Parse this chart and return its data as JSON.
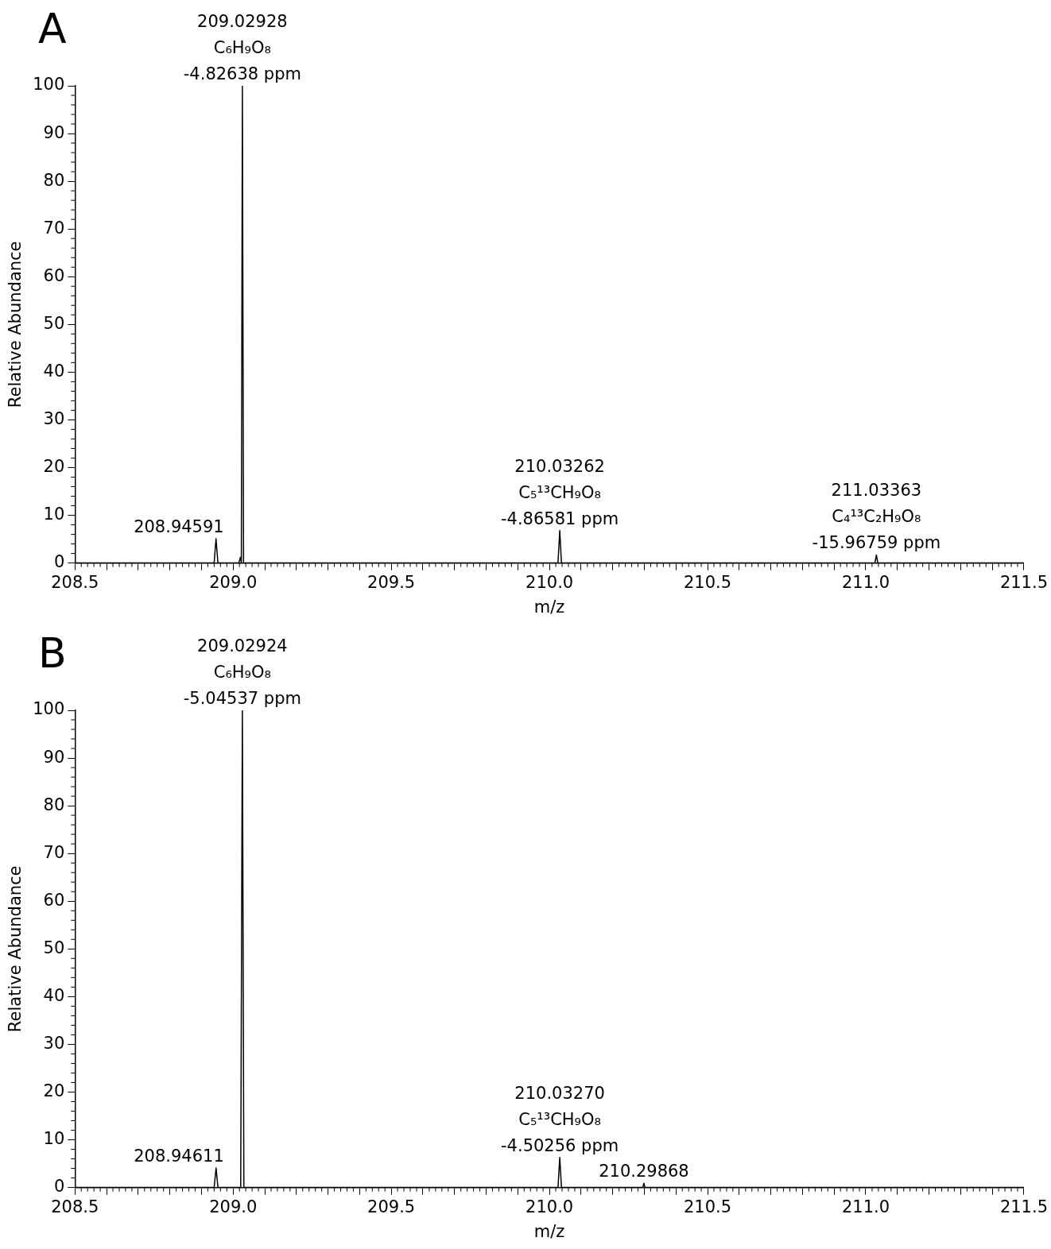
{
  "chart_data": [
    {
      "type": "line",
      "title": "A",
      "xlabel": "m/z",
      "ylabel": "Relative Abundance",
      "series": [
        {
          "color": "#000000",
          "x": [
            208.5,
            208.94,
            208.94591,
            208.952,
            209.018,
            209.023,
            209.026,
            209.02928,
            209.033,
            210.027,
            210.03262,
            210.038,
            211.029,
            211.03363,
            211.038,
            211.5
          ],
          "values": [
            0,
            0,
            5.1,
            0,
            0,
            1.2,
            0,
            100,
            0,
            0,
            6.8,
            0,
            0,
            1.7,
            0,
            0
          ]
        }
      ],
      "annotations": [
        {
          "text": "208.94591",
          "x": 208.94591,
          "y": 5.1
        },
        {
          "text": "209.02928\nC₆H₉O₈\n-4.82638 ppm",
          "x": 209.02928,
          "y": 100
        },
        {
          "text": "210.03262\nC₅¹³CH₉O₈\n-4.86581 ppm",
          "x": 210.03262,
          "y": 6.8
        },
        {
          "text": "211.03363\nC₄¹³C₂H₉O₈\n-15.96759 ppm",
          "x": 211.03363,
          "y": 1.7
        }
      ],
      "xlim": [
        208.5,
        211.5
      ],
      "ylim": [
        0,
        100
      ],
      "xticks": [
        208.5,
        {
          "value": 208.6,
          "label": null
        },
        {
          "value": 208.7,
          "label": null
        },
        {
          "value": 208.8,
          "label": null
        },
        {
          "value": 208.9,
          "label": null
        },
        {
          "value": 209,
          "label": "209.0"
        },
        {
          "value": 209.1,
          "label": null
        },
        {
          "value": 209.2,
          "label": null
        },
        {
          "value": 209.3,
          "label": null
        },
        {
          "value": 209.4,
          "label": null
        },
        209.5,
        {
          "value": 209.6,
          "label": null
        },
        {
          "value": 209.7,
          "label": null
        },
        {
          "value": 209.8,
          "label": null
        },
        {
          "value": 209.9,
          "label": null
        },
        {
          "value": 210,
          "label": "210.0"
        },
        {
          "value": 210.1,
          "label": null
        },
        {
          "value": 210.2,
          "label": null
        },
        {
          "value": 210.3,
          "label": null
        },
        {
          "value": 210.4,
          "label": null
        },
        210.5,
        {
          "value": 210.6,
          "label": null
        },
        {
          "value": 210.7,
          "label": null
        },
        {
          "value": 210.8,
          "label": null
        },
        {
          "value": 210.9,
          "label": null
        },
        {
          "value": 211,
          "label": "211.0"
        },
        {
          "value": 211.1,
          "label": null
        },
        {
          "value": 211.2,
          "label": null
        },
        {
          "value": 211.3,
          "label": null
        },
        {
          "value": 211.4,
          "label": null
        },
        211.5
      ],
      "yticks": [
        0,
        10,
        20,
        30,
        40,
        50,
        60,
        70,
        80,
        90,
        100
      ],
      "grid": false,
      "legend": false
    },
    {
      "type": "line",
      "title": "B",
      "xlabel": "m/z",
      "ylabel": "Relative Abundance",
      "series": [
        {
          "color": "#000000",
          "x": [
            208.5,
            208.94,
            208.94611,
            208.952,
            209.024,
            209.02924,
            209.034,
            210.027,
            210.0327,
            210.038,
            210.295,
            210.29868,
            210.302,
            211.5
          ],
          "values": [
            0,
            0,
            4.1,
            0,
            0,
            100,
            0,
            0,
            6.3,
            0,
            0,
            0.9,
            0,
            0
          ]
        }
      ],
      "annotations": [
        {
          "text": "208.94611",
          "x": 208.94611,
          "y": 4.1
        },
        {
          "text": "209.02924\nC₆H₉O₈\n-5.04537 ppm",
          "x": 209.02924,
          "y": 100
        },
        {
          "text": "210.03270\nC₅¹³CH₉O₈\n-4.50256 ppm",
          "x": 210.0327,
          "y": 6.3
        },
        {
          "text": "210.29868",
          "x": 210.29868,
          "y": 0.9
        }
      ],
      "xlim": [
        208.5,
        211.5
      ],
      "ylim": [
        0,
        100
      ],
      "xticks": [
        208.5,
        {
          "value": 208.6,
          "label": null
        },
        {
          "value": 208.7,
          "label": null
        },
        {
          "value": 208.8,
          "label": null
        },
        {
          "value": 208.9,
          "label": null
        },
        {
          "value": 209,
          "label": "209.0"
        },
        {
          "value": 209.1,
          "label": null
        },
        {
          "value": 209.2,
          "label": null
        },
        {
          "value": 209.3,
          "label": null
        },
        {
          "value": 209.4,
          "label": null
        },
        209.5,
        {
          "value": 209.6,
          "label": null
        },
        {
          "value": 209.7,
          "label": null
        },
        {
          "value": 209.8,
          "label": null
        },
        {
          "value": 209.9,
          "label": null
        },
        {
          "value": 210,
          "label": "210.0"
        },
        {
          "value": 210.1,
          "label": null
        },
        {
          "value": 210.2,
          "label": null
        },
        {
          "value": 210.3,
          "label": null
        },
        {
          "value": 210.4,
          "label": null
        },
        210.5,
        {
          "value": 210.6,
          "label": null
        },
        {
          "value": 210.7,
          "label": null
        },
        {
          "value": 210.8,
          "label": null
        },
        {
          "value": 210.9,
          "label": null
        },
        {
          "value": 211,
          "label": "211.0"
        },
        {
          "value": 211.1,
          "label": null
        },
        {
          "value": 211.2,
          "label": null
        },
        {
          "value": 211.3,
          "label": null
        },
        {
          "value": 211.4,
          "label": null
        },
        211.5
      ],
      "yticks": [
        0,
        10,
        20,
        30,
        40,
        50,
        60,
        70,
        80,
        90,
        100
      ],
      "grid": false,
      "legend": false
    }
  ]
}
